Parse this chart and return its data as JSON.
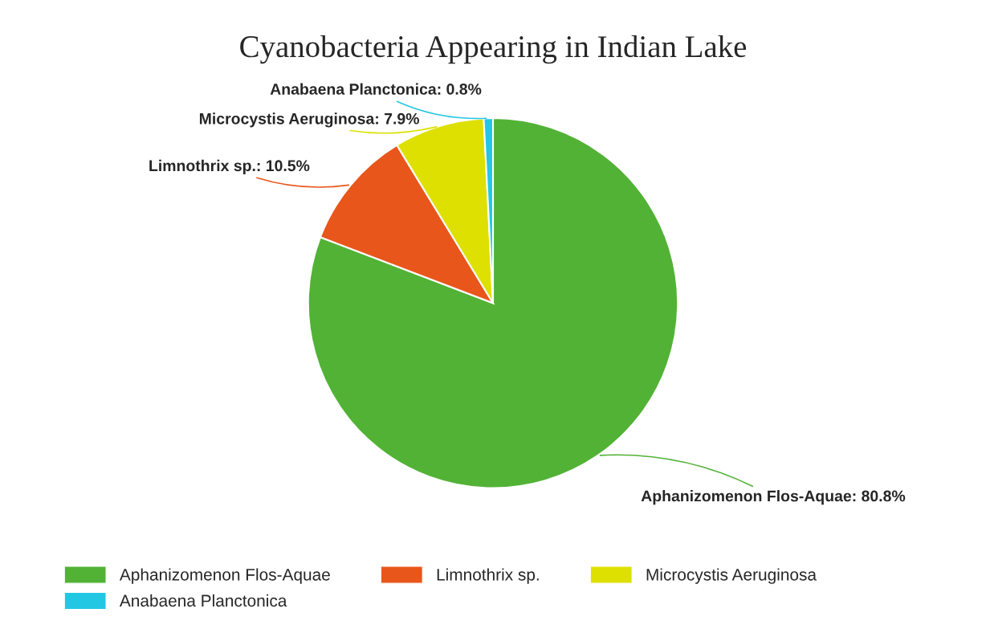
{
  "chart_data": {
    "type": "pie",
    "title": "Cyanobacteria Appearing in Indian Lake",
    "categories": [
      "Aphanizomenon Flos-Aquae",
      "Limnothrix sp.",
      "Microcystis Aeruginosa",
      "Anabaena Planctonica"
    ],
    "values": [
      80.8,
      10.5,
      7.9,
      0.8
    ],
    "value_labels": [
      "Aphanizomenon Flos-Aquae: 80.8%",
      "Limnothrix sp.: 10.5%",
      "Microcystis Aeruginosa: 7.9%",
      "Anabaena Planctonica: 0.8%"
    ],
    "colors": [
      "#52b236",
      "#e8561b",
      "#dde000",
      "#22c7e4"
    ],
    "legend": "bottom"
  }
}
